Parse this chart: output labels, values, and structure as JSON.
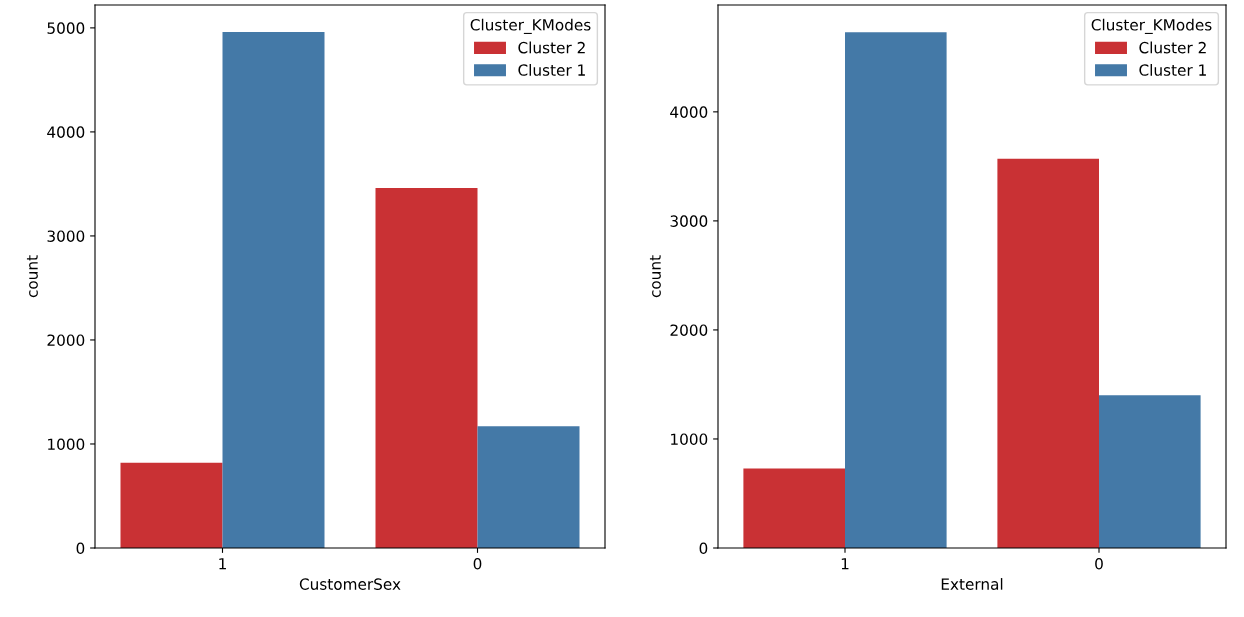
{
  "chart_data": [
    {
      "type": "bar",
      "categories": [
        "1",
        "0"
      ],
      "xlabel": "CustomerSex",
      "ylabel": "count",
      "legend_title": "Cluster_KModes",
      "legend": "top right",
      "series": [
        {
          "name": "Cluster 2",
          "color": "#c93134",
          "values": [
            820,
            3460
          ]
        },
        {
          "name": "Cluster 1",
          "color": "#4479a7",
          "values": [
            4960,
            1170
          ]
        }
      ],
      "ylim": [
        0,
        5220
      ],
      "yticks": [
        0,
        1000,
        2000,
        3000,
        4000,
        5000
      ]
    },
    {
      "type": "bar",
      "categories": [
        "1",
        "0"
      ],
      "xlabel": "External",
      "ylabel": "count",
      "legend_title": "Cluster_KModes",
      "legend": "top right",
      "series": [
        {
          "name": "Cluster 2",
          "color": "#c93134",
          "values": [
            730,
            3570
          ]
        },
        {
          "name": "Cluster 1",
          "color": "#4479a7",
          "values": [
            4730,
            1400
          ]
        }
      ],
      "ylim": [
        0,
        4980
      ],
      "yticks": [
        0,
        1000,
        2000,
        3000,
        4000
      ]
    }
  ]
}
